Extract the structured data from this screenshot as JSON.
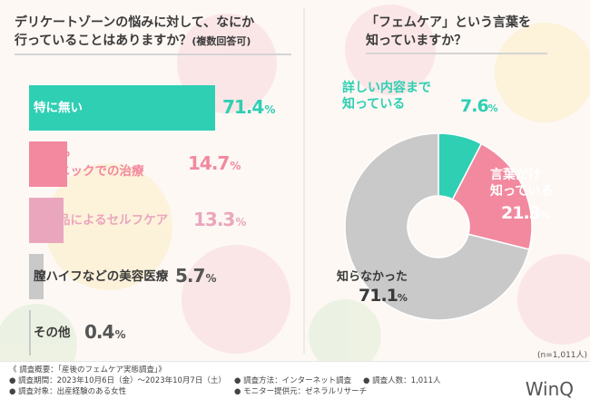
{
  "colors": {
    "teal": "#2fcfb3",
    "pink": "#f2899f",
    "pink_light": "#eaa6bd",
    "gray": "#c9c9c9",
    "gray_text": "#3a3a3a",
    "background": "#fdf8f4"
  },
  "left": {
    "title_line1": "デリケートゾーンの悩みに対して、なにか",
    "title_line2": "行っていることはありますか？",
    "title_suffix": "(複数回答可)"
  },
  "right": {
    "title_line1": "「フェムケア」という言葉を",
    "title_line2": "知っていますか？",
    "sample_note": "(n=1,011人)"
  },
  "chart_data": [
    {
      "type": "bar",
      "orientation": "horizontal",
      "title": "デリケートゾーンの悩みに対して、なにか行っていることはありますか？(複数回答可)",
      "unit": "%",
      "categories": [
        "特に無い",
        "病院やクリニックでの治療",
        "市販品によるセルフケア",
        "膣ハイフなどの美容医療",
        "その他"
      ],
      "values": [
        71.4,
        14.7,
        13.3,
        5.7,
        0.4
      ],
      "xlim": [
        0,
        71.4
      ],
      "label_lines": [
        [
          "特に無い"
        ],
        [
          "病院や",
          "クリニックでの治療"
        ],
        [
          "市販品によるセルフケア"
        ],
        [
          "膣ハイフなどの美容医療"
        ],
        [
          "その他"
        ]
      ],
      "value_labels": [
        "71.4",
        "14.7",
        "13.3",
        "5.7",
        "0.4"
      ],
      "colors": [
        "#2fcfb3",
        "#f2899f",
        "#eaa6bd",
        "#c9c9c9",
        "#c9c9c9"
      ]
    },
    {
      "type": "pie",
      "variant": "donut",
      "title": "「フェムケア」という言葉を知っていますか？",
      "unit": "%",
      "labels": [
        "詳しい内容まで知っている",
        "言葉だけ知っている",
        "知らなかった"
      ],
      "label_lines": [
        [
          "詳しい内容まで",
          "知っている"
        ],
        [
          "言葉だけ",
          "知っている"
        ],
        [
          "知らなかった"
        ]
      ],
      "values": [
        7.6,
        21.3,
        71.1
      ],
      "value_labels": [
        "7.6",
        "21.3",
        "71.1"
      ],
      "colors": [
        "#2fcfb3",
        "#f2899f",
        "#c9c9c9"
      ],
      "label_colors": [
        "#2fcfb3",
        "#ffffff",
        "#3a3a3a"
      ]
    }
  ],
  "footer": {
    "survey_overview": "《 調査概要：「産後のフェムケア実態調査」》",
    "period": "● 調査期間：2023年10月6日（金）〜2023年10月7日（土）",
    "subject": "● 調査対象：出産経験のある女性",
    "method": "● 調査方法：インターネット調査",
    "provider": "● モニター提供元：ゼネラルリサーチ",
    "count": "● 調査人数：1,011人",
    "logo": "WinQ"
  }
}
